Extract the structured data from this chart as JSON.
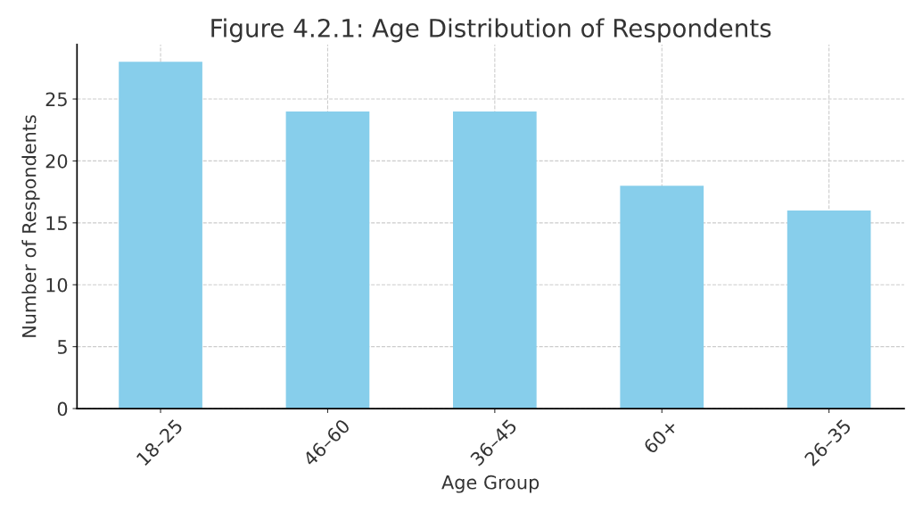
{
  "chart_data": {
    "type": "bar",
    "title": "Figure 4.2.1: Age Distribution of Respondents",
    "xlabel": "Age Group",
    "ylabel": "Number of Respondents",
    "categories": [
      "18–25",
      "46–60",
      "36–45",
      "60+",
      "26–35"
    ],
    "values": [
      28,
      24,
      24,
      18,
      16
    ],
    "color": "#87ceeb",
    "ylim": [
      0,
      29.4
    ],
    "yticks": [
      0,
      5,
      10,
      15,
      20,
      25
    ],
    "grid": true,
    "line_style": "dashed"
  }
}
